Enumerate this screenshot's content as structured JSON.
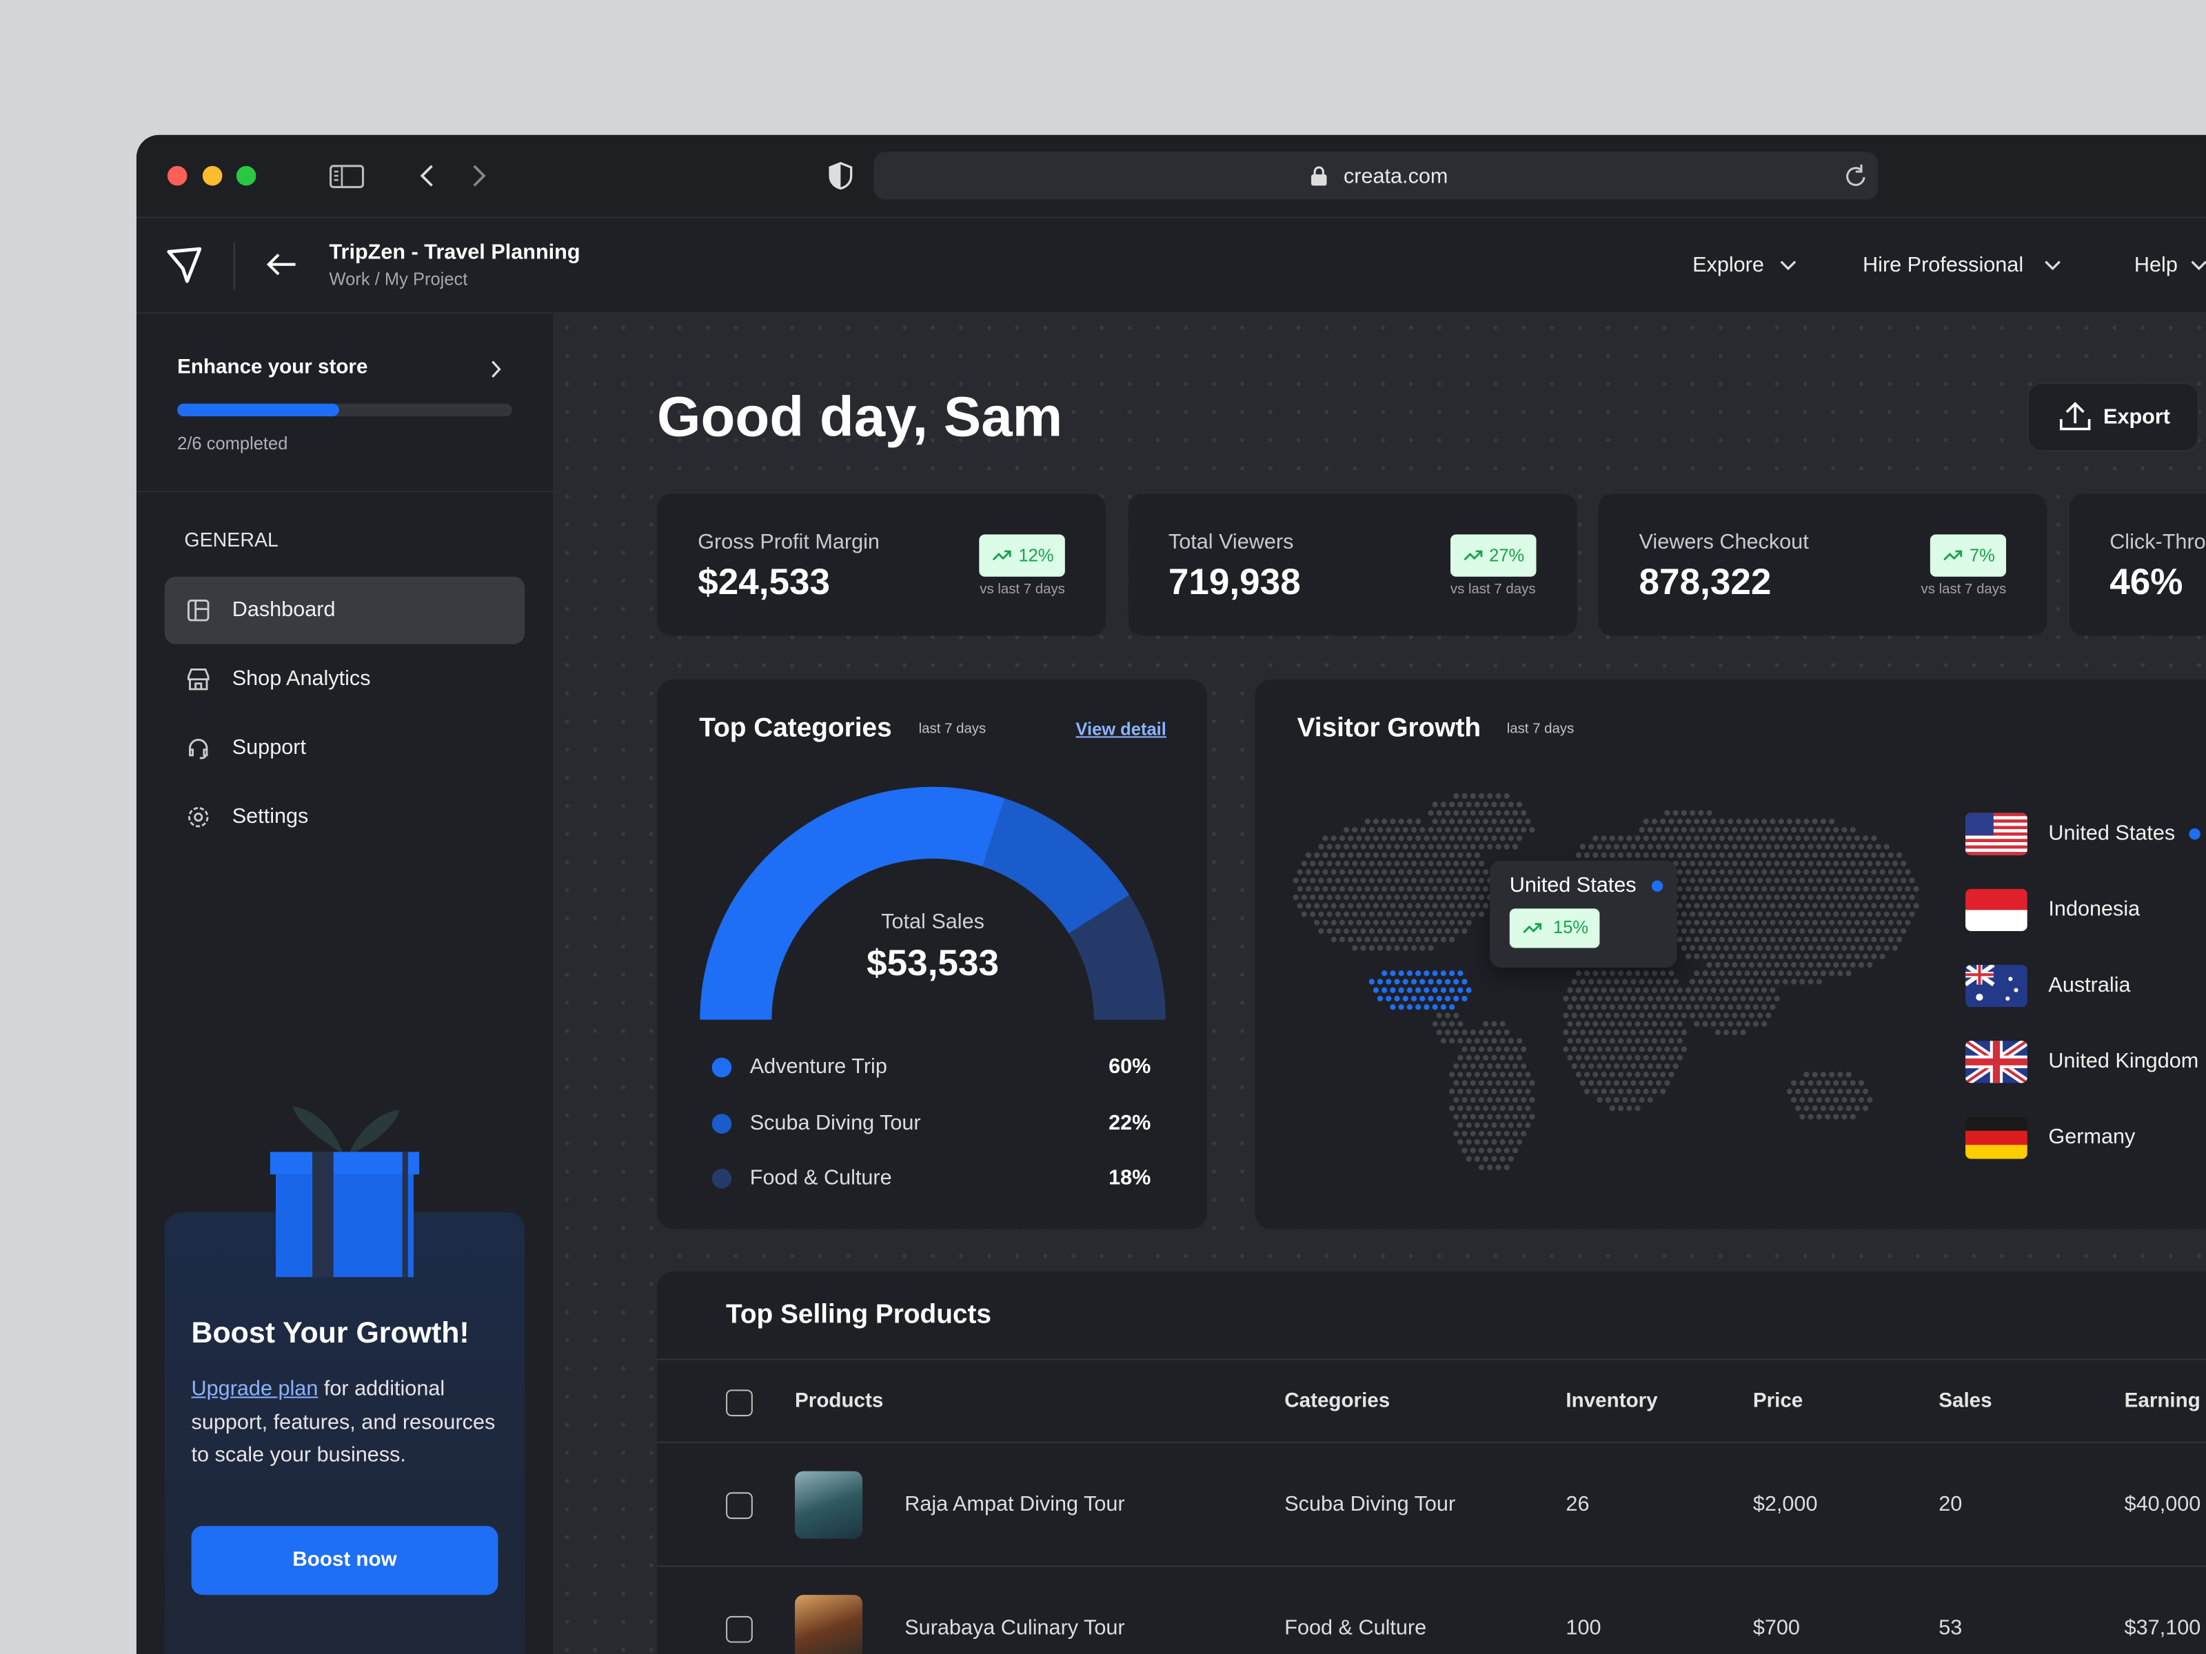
{
  "browser": {
    "url": "creata.com"
  },
  "header": {
    "title": "TripZen - Travel Planning",
    "breadcrumb": "Work / My Project",
    "nav": [
      "Explore",
      "Hire Professional",
      "Help"
    ]
  },
  "sidebar": {
    "progress": {
      "title": "Enhance your store",
      "status": "2/6 completed"
    },
    "section": "GENERAL",
    "menu": [
      "Dashboard",
      "Shop Analytics",
      "Support",
      "Settings"
    ],
    "promo": {
      "title": "Boost Your Growth!",
      "link": "Upgrade plan",
      "text": " for additional support, features, and resources to scale your business.",
      "button": "Boost now"
    }
  },
  "greeting": "Good day, Sam",
  "export": "Export",
  "stats": [
    {
      "label": "Gross Profit Margin",
      "value": "$24,533",
      "change": "12%",
      "note": "vs last 7 days"
    },
    {
      "label": "Total Viewers",
      "value": "719,938",
      "change": "27%",
      "note": "vs last 7 days"
    },
    {
      "label": "Viewers Checkout",
      "value": "878,322",
      "change": "7%",
      "note": "vs last 7 days"
    },
    {
      "label": "Click-Thro",
      "value": "46%"
    }
  ],
  "top_categories": {
    "title": "Top Categories",
    "subtitle": "last 7 days",
    "link": "View detail",
    "center_label": "Total Sales",
    "center_value": "$53,533",
    "items": [
      {
        "name": "Adventure Trip",
        "value": 60,
        "label": "60%",
        "color": "#1e6ef6"
      },
      {
        "name": "Scuba Diving Tour",
        "value": 22,
        "label": "22%",
        "color": "#1a5ccc"
      },
      {
        "name": "Food & Culture",
        "value": 18,
        "label": "18%",
        "color": "#253a69"
      }
    ]
  },
  "visitor_growth": {
    "title": "Visitor Growth",
    "subtitle": "last 7 days",
    "tooltip": {
      "country": "United States",
      "change": "15%"
    },
    "countries": [
      "United States",
      "Indonesia",
      "Australia",
      "United Kingdom",
      "Germany"
    ]
  },
  "products": {
    "title": "Top Selling Products",
    "columns": [
      "Products",
      "Categories",
      "Inventory",
      "Price",
      "Sales",
      "Earning"
    ],
    "rows": [
      [
        "Raja Ampat Diving Tour",
        "Scuba Diving Tour",
        26,
        "$2,000",
        20,
        "$40,000"
      ],
      [
        "Surabaya Culinary Tour",
        "Food & Culture",
        100,
        "$700",
        53,
        "$37,100"
      ]
    ]
  }
}
